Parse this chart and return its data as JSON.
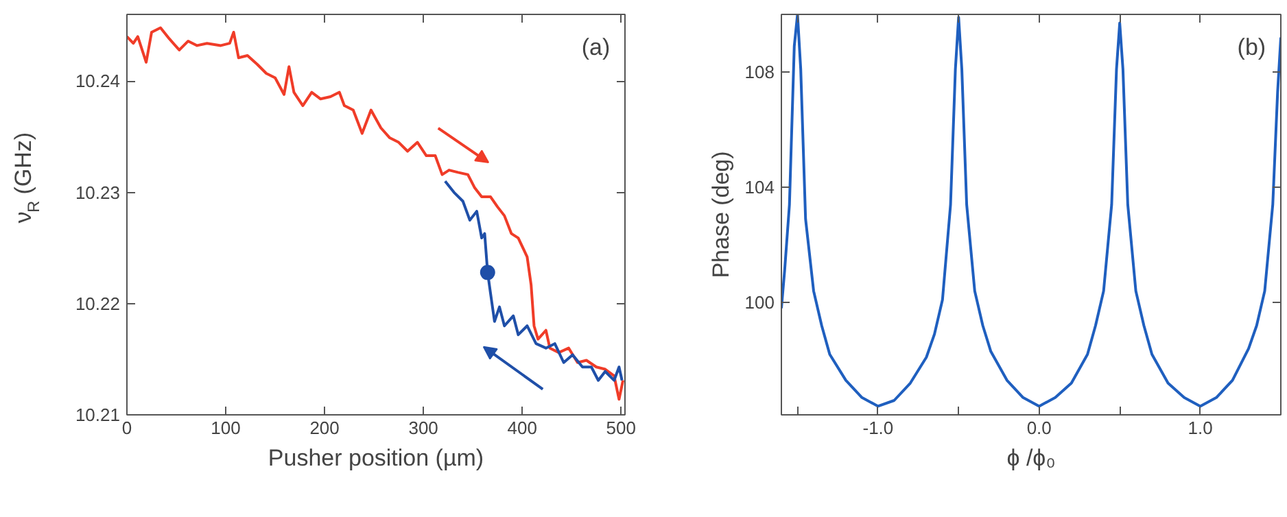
{
  "chart_data": [
    {
      "type": "line",
      "xlabel": "Pusher position (µm)",
      "ylabel": "ν$_{R}$ (GHz)",
      "annotations": [
        "(a)"
      ],
      "xlim": [
        0,
        504
      ],
      "ylim": [
        10.21,
        10.246
      ],
      "xticks": [
        0,
        100,
        200,
        300,
        400,
        500
      ],
      "yticks": [
        10.21,
        10.22,
        10.23,
        10.24
      ],
      "grid": false,
      "series": [
        {
          "color": "#f03c28",
          "x": [
            0,
            6.5,
            11,
            19.5,
            25,
            34,
            43,
            53,
            62,
            71,
            81,
            95,
            104,
            108,
            113,
            122,
            132,
            141,
            150,
            159,
            164,
            169,
            178,
            187,
            196,
            206,
            215,
            220,
            229,
            238,
            247,
            257,
            266,
            275,
            284,
            294,
            303,
            312,
            319,
            326,
            335,
            345,
            352,
            359,
            368,
            375,
            382,
            389,
            396,
            405,
            409,
            412,
            416,
            424,
            428,
            437,
            447,
            456,
            465,
            475,
            484,
            493,
            498,
            502
          ],
          "values": [
            10.244,
            10.2434,
            10.244,
            10.2417,
            10.2444,
            10.2448,
            10.2438,
            10.2428,
            10.2436,
            10.2432,
            10.2434,
            10.2432,
            10.2434,
            10.2444,
            10.2421,
            10.2423,
            10.2415,
            10.2407,
            10.2403,
            10.2388,
            10.2413,
            10.239,
            10.2378,
            10.239,
            10.2384,
            10.2386,
            10.239,
            10.2378,
            10.2374,
            10.2353,
            10.2374,
            10.2358,
            10.2349,
            10.2345,
            10.2337,
            10.2345,
            10.2333,
            10.2333,
            10.2316,
            10.232,
            10.2318,
            10.2316,
            10.2304,
            10.2296,
            10.2296,
            10.2287,
            10.2279,
            10.2263,
            10.2259,
            10.2242,
            10.2217,
            10.218,
            10.2168,
            10.2176,
            10.216,
            10.2156,
            10.216,
            10.2147,
            10.2149,
            10.2143,
            10.2141,
            10.2135,
            10.2114,
            10.2131
          ]
        },
        {
          "color": "#1f4fa8",
          "x": [
            322,
            331,
            340,
            347,
            354,
            359,
            362,
            365,
            368,
            372,
            377,
            382,
            391,
            396,
            405,
            414,
            424,
            433,
            442,
            451,
            461,
            470,
            477,
            484,
            493,
            498,
            501
          ],
          "values": [
            10.231,
            10.23,
            10.2292,
            10.2275,
            10.2283,
            10.2259,
            10.2263,
            10.2228,
            10.2209,
            10.2184,
            10.2197,
            10.218,
            10.2189,
            10.2172,
            10.218,
            10.2164,
            10.216,
            10.2164,
            10.2147,
            10.2154,
            10.2143,
            10.2143,
            10.2131,
            10.2139,
            10.2131,
            10.2143,
            10.2131
          ]
        },
        {
          "type": "scatter",
          "marker": "circle",
          "color": "#1f4fa8",
          "x": [
            365
          ],
          "values": [
            10.2228
          ]
        }
      ]
    },
    {
      "type": "line",
      "xlabel": "ϕ /ϕ₀",
      "ylabel": "Phase (deg)",
      "annotations": [
        "(b)"
      ],
      "xlim": [
        -1.6,
        1.5
      ],
      "ylim": [
        96.1,
        110.0
      ],
      "xticks": [
        {
          "value": -1.5,
          "label": null
        },
        {
          "value": -1,
          "label": "-1.0"
        },
        {
          "value": -0.5,
          "label": null
        },
        {
          "value": 0,
          "label": "0.0"
        },
        {
          "value": 0.5,
          "label": null
        },
        {
          "value": 1,
          "label": "1.0"
        },
        {
          "value": 1.5,
          "label": null
        }
      ],
      "yticks": [
        100,
        104,
        108
      ],
      "grid": false,
      "series": [
        {
          "color": "#1f5fbf",
          "x": [
            -1.6,
            -1.58,
            -1.55,
            -1.52,
            -1.5,
            -1.48,
            -1.45,
            -1.4,
            -1.35,
            -1.3,
            -1.2,
            -1.1,
            -1.0,
            -0.9,
            -0.8,
            -0.7,
            -0.65,
            -0.6,
            -0.55,
            -0.52,
            -0.5,
            -0.48,
            -0.45,
            -0.4,
            -0.35,
            -0.3,
            -0.2,
            -0.1,
            0.0,
            0.1,
            0.2,
            0.3,
            0.35,
            0.4,
            0.45,
            0.48,
            0.5,
            0.52,
            0.55,
            0.6,
            0.65,
            0.7,
            0.8,
            0.9,
            1.0,
            1.1,
            1.2,
            1.3,
            1.35,
            1.4,
            1.45,
            1.48,
            1.5
          ],
          "values": [
            99.8,
            101.1,
            103.4,
            108.9,
            110.0,
            108.1,
            102.9,
            100.4,
            99.2,
            98.2,
            97.3,
            96.7,
            96.4,
            96.6,
            97.2,
            98.1,
            98.9,
            100.1,
            103.4,
            108.1,
            109.9,
            108.1,
            103.4,
            100.4,
            99.2,
            98.3,
            97.3,
            96.7,
            96.4,
            96.7,
            97.2,
            98.2,
            99.2,
            100.4,
            103.4,
            108.1,
            109.7,
            108.1,
            103.4,
            100.4,
            99.2,
            98.2,
            97.2,
            96.7,
            96.4,
            96.7,
            97.3,
            98.4,
            99.2,
            100.4,
            103.4,
            107.3,
            109.2
          ]
        }
      ]
    }
  ]
}
